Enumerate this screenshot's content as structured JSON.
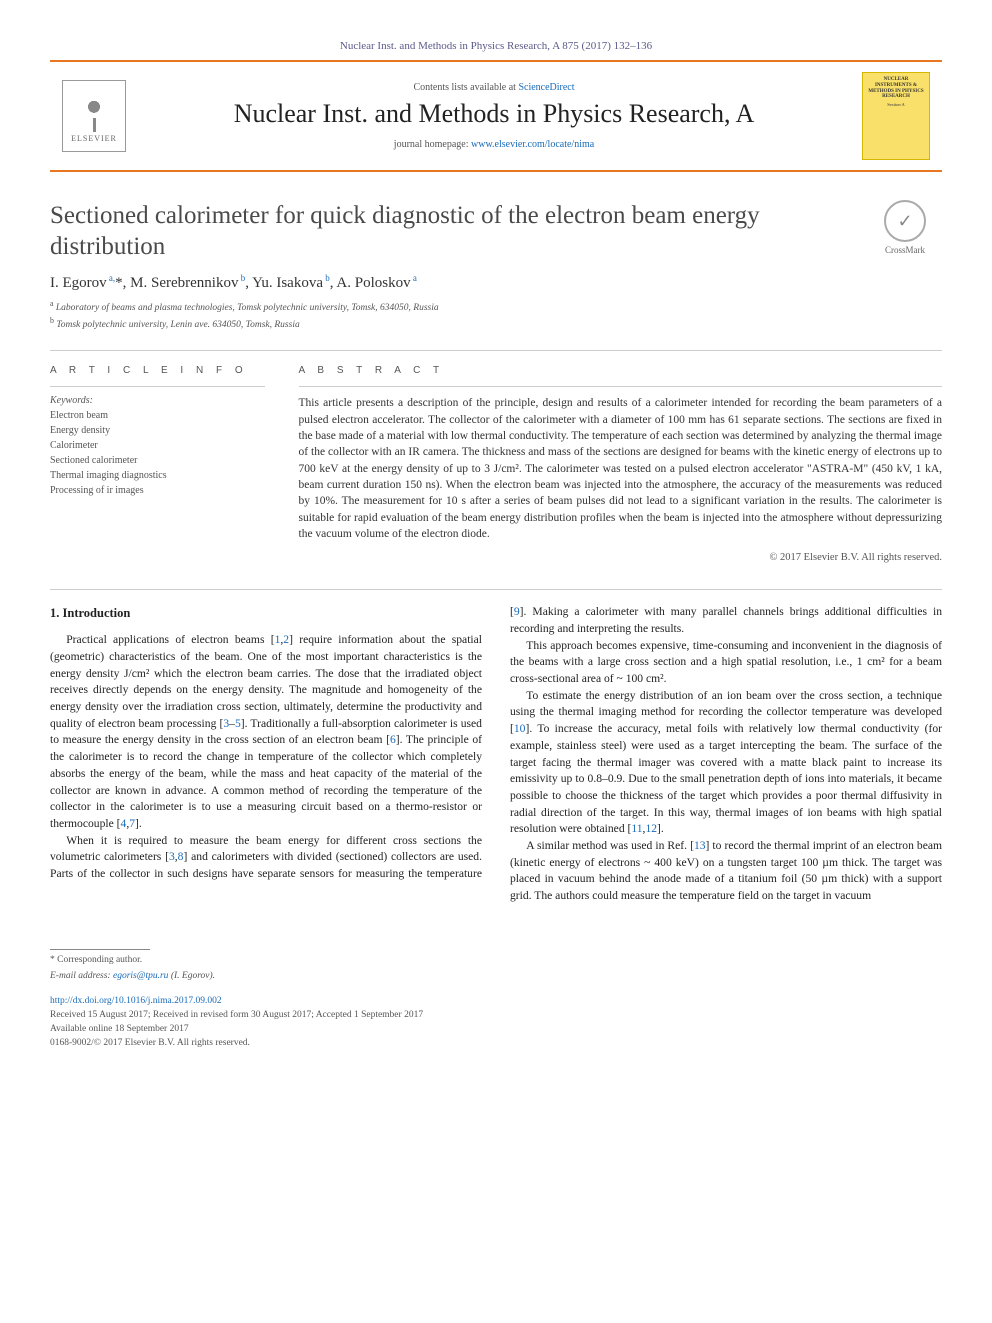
{
  "header": {
    "top_citation": "Nuclear Inst. and Methods in Physics Research, A 875 (2017) 132–136",
    "contents_prefix": "Contents lists available at ",
    "contents_link": "ScienceDirect",
    "journal_title": "Nuclear Inst. and Methods in Physics Research, A",
    "homepage_prefix": "journal homepage: ",
    "homepage_link": "www.elsevier.com/locate/nima",
    "publisher": "ELSEVIER",
    "cover": {
      "line1": "NUCLEAR INSTRUMENTS & METHODS IN PHYSICS RESEARCH",
      "line2": "Section A"
    }
  },
  "crossmark_label": "CrossMark",
  "title": "Sectioned calorimeter for quick diagnostic of the electron beam energy distribution",
  "authors_html": "I. Egorov<sup> a,</sup>*, M. Serebrennikov<sup> b</sup>, Yu. Isakova<sup> b</sup>, A. Poloskov<sup> a</sup>",
  "affiliations": {
    "a": "Laboratory of beams and plasma technologies, Tomsk polytechnic university, Tomsk, 634050, Russia",
    "b": "Tomsk polytechnic university, Lenin ave. 634050, Tomsk, Russia"
  },
  "section_heads": {
    "info": "A R T I C L E   I N F O",
    "abstract": "A B S T R A C T"
  },
  "keywords_label": "Keywords:",
  "keywords": [
    "Electron beam",
    "Energy density",
    "Calorimeter",
    "Sectioned calorimeter",
    "Thermal imaging diagnostics",
    "Processing of ir images"
  ],
  "abstract": "This article presents a description of the principle, design and results of a calorimeter intended for recording the beam parameters of a pulsed electron accelerator. The collector of the calorimeter with a diameter of 100 mm has 61 separate sections. The sections are fixed in the base made of a material with low thermal conductivity. The temperature of each section was determined by analyzing the thermal image of the collector with an IR camera. The thickness and mass of the sections are designed for beams with the kinetic energy of electrons up to 700 keV at the energy density of up to 3 J/cm². The calorimeter was tested on a pulsed electron accelerator \"ASTRA-M\" (450 kV, 1 kA, beam current duration 150 ns). When the electron beam was injected into the atmosphere, the accuracy of the measurements was reduced by 10%. The measurement for 10 s after a series of beam pulses did not lead to a significant variation in the results. The calorimeter is suitable for rapid evaluation of the beam energy distribution profiles when the beam is injected into the atmosphere without depressurizing the vacuum volume of the electron diode.",
  "abstract_copyright": "© 2017 Elsevier B.V. All rights reserved.",
  "body": {
    "h_intro": "1. Introduction",
    "p1_pre": "Practical applications of electron beams [",
    "p1_c1": "1",
    "p1_m1": ",",
    "p1_c2": "2",
    "p1_a": "] require information about the spatial (geometric) characteristics of the beam. One of the most important characteristics is the energy density J/cm² which the electron beam carries. The dose that the irradiated object receives directly depends on the energy density. The magnitude and homogeneity of the energy density over the irradiation cross section, ultimately, determine the productivity and quality of electron beam processing [",
    "p1_c3": "3",
    "p1_m2": "–",
    "p1_c4": "5",
    "p1_b": "]. Traditionally a full-absorption calorimeter is used to measure the energy density in the cross section of an electron beam [",
    "p1_c5": "6",
    "p1_c": "]. The principle of the calorimeter is to record the change in temperature of the collector which completely absorbs the energy of the beam, while the mass and heat capacity of the material of the collector are known in advance. A common method of recording the temperature of the collector in the calorimeter is to use a measuring circuit based on a thermo-resistor or thermocouple [",
    "p1_c6": "4",
    "p1_m3": ",",
    "p1_c7": "7",
    "p1_d": "].",
    "p2_pre": "When it is required to measure the beam energy for different cross sections the volumetric calorimeters [",
    "p2_c1": "3",
    "p2_m1": ",",
    "p2_c2": "8",
    "p2_a": "] and calorimeters with divided (sectioned) collectors are used. Parts of the collector in such designs have separate sensors for measuring the temperature [",
    "p2_c3": "9",
    "p2_b": "]. Making a calorimeter with many parallel channels brings additional difficulties in recording and interpreting the results.",
    "p3": "This approach becomes expensive, time-consuming and inconvenient in the diagnosis of the beams with a large cross section and a high spatial resolution, i.e., 1 cm² for a beam cross-sectional area of ~ 100 cm².",
    "p4_pre": "To estimate the energy distribution of an ion beam over the cross section, a technique using the thermal imaging method for recording the collector temperature was developed [",
    "p4_c1": "10",
    "p4_a": "]. To increase the accuracy, metal foils with relatively low thermal conductivity (for example, stainless steel) were used as a target intercepting the beam. The surface of the target facing the thermal imager was covered with a matte black paint to increase its emissivity up to 0.8–0.9. Due to the small penetration depth of ions into materials, it became possible to choose the thickness of the target which provides a poor thermal diffusivity in radial direction of the target. In this way, thermal images of ion beams with high spatial resolution were obtained [",
    "p4_c2": "11",
    "p4_m1": ",",
    "p4_c3": "12",
    "p4_b": "].",
    "p5_pre": "A similar method was used in Ref. [",
    "p5_c1": "13",
    "p5_a": "] to record the thermal imprint of an electron beam (kinetic energy of electrons ~ 400 keV) on a tungsten target 100 µm thick. The target was placed in vacuum behind the anode made of a titanium foil (50 µm thick) with a support grid. The authors could measure the temperature field on the target in vacuum"
  },
  "footer": {
    "corresponding": "* Corresponding author.",
    "email_label": "E-mail address: ",
    "email": "egoris@tpu.ru",
    "email_author": " (I. Egorov).",
    "doi": "http://dx.doi.org/10.1016/j.nima.2017.09.002",
    "history": "Received 15 August 2017; Received in revised form 30 August 2017; Accepted 1 September 2017",
    "available": "Available online 18 September 2017",
    "issn": "0168-9002/© 2017 Elsevier B.V. All rights reserved."
  },
  "colors": {
    "orange_rule": "#e87722",
    "link": "#1a6bb8",
    "cover_bg": "#f9e06a"
  }
}
